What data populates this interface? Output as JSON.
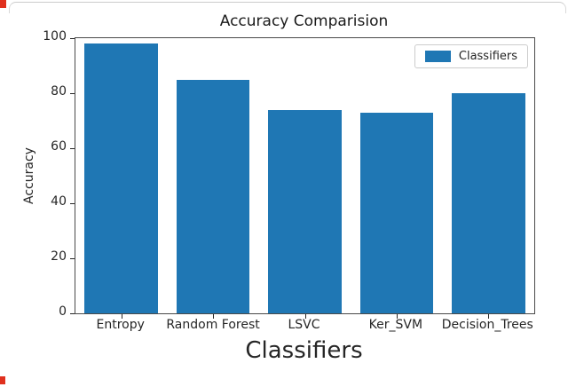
{
  "chart_data": {
    "type": "bar",
    "title": "Accuracy Comparision",
    "xlabel": "Classifiers",
    "ylabel": "Accuracy",
    "categories": [
      "Entropy",
      "Random Forest",
      "LSVC",
      "Ker_SVM",
      "Decision_Trees"
    ],
    "values": [
      98,
      85,
      74,
      73,
      80
    ],
    "ylim": [
      0,
      100
    ],
    "yticks": [
      0,
      20,
      40,
      60,
      80,
      100
    ],
    "bar_color": "#1f77b4",
    "grid": false,
    "legend": {
      "entries": [
        "Classifiers"
      ],
      "position": "upper right",
      "swatch_color": "#1f77b4"
    }
  }
}
